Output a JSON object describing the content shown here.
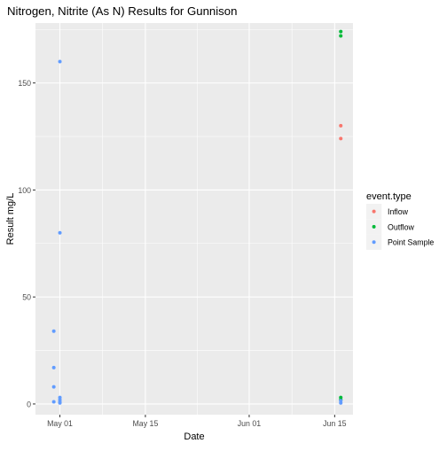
{
  "chart_data": {
    "type": "scatter",
    "title": "Nitrogen, Nitrite  (As N) Results for Gunnison",
    "xlabel": "Date",
    "ylabel": "Result mg/L",
    "x_type": "date",
    "xlim": [
      "2023-04-27",
      "2023-06-18"
    ],
    "ylim": [
      -5,
      178
    ],
    "x_ticks": [
      {
        "value": "2023-05-01",
        "label": "May 01"
      },
      {
        "value": "2023-05-15",
        "label": "May 15"
      },
      {
        "value": "2023-06-01",
        "label": "Jun 01"
      },
      {
        "value": "2023-06-15",
        "label": "Jun 15"
      }
    ],
    "y_ticks": [
      {
        "value": 0,
        "label": "0"
      },
      {
        "value": 50,
        "label": "50"
      },
      {
        "value": 100,
        "label": "100"
      },
      {
        "value": 150,
        "label": "150"
      }
    ],
    "grid": true,
    "background": "#EBEBEB",
    "legend": {
      "title": "event.type",
      "position": "right"
    },
    "series": [
      {
        "name": "Inflow",
        "color": "#F8766D",
        "points": [
          {
            "x": "2023-06-16",
            "y": 130
          },
          {
            "x": "2023-06-16",
            "y": 124
          }
        ]
      },
      {
        "name": "Outflow",
        "color": "#00BA38",
        "points": [
          {
            "x": "2023-06-16",
            "y": 174
          },
          {
            "x": "2023-06-16",
            "y": 172
          },
          {
            "x": "2023-06-16",
            "y": 3
          },
          {
            "x": "2023-06-16",
            "y": 2
          }
        ]
      },
      {
        "name": "Point Sample",
        "color": "#619CFF",
        "points": [
          {
            "x": "2023-05-01",
            "y": 160
          },
          {
            "x": "2023-05-01",
            "y": 80
          },
          {
            "x": "2023-04-30",
            "y": 34
          },
          {
            "x": "2023-04-30",
            "y": 17
          },
          {
            "x": "2023-04-30",
            "y": 8
          },
          {
            "x": "2023-04-30",
            "y": 1
          },
          {
            "x": "2023-05-01",
            "y": 3
          },
          {
            "x": "2023-05-01",
            "y": 2
          },
          {
            "x": "2023-05-01",
            "y": 1
          },
          {
            "x": "2023-05-01",
            "y": 0.5
          },
          {
            "x": "2023-06-16",
            "y": 1.5
          },
          {
            "x": "2023-06-16",
            "y": 0.5
          }
        ]
      }
    ]
  }
}
